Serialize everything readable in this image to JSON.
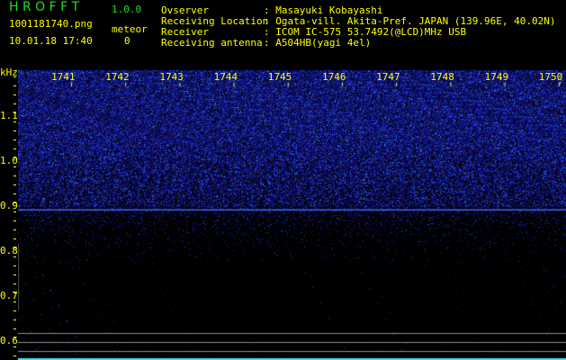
{
  "app": {
    "logo_letters": "H R O F F T",
    "version": "1.0.0"
  },
  "file": {
    "name": "1001181740.png",
    "datetime": "10.01.18 17:40"
  },
  "meteor": {
    "label": "meteor",
    "count": "0"
  },
  "info": [
    {
      "label": "Ovserver",
      "value": ": Masayuki Kobayashi"
    },
    {
      "label": "Receiving Location",
      "value": ": Ogata-vill. Akita-Pref. JAPAN (139.96E, 40.02N)"
    },
    {
      "label": "Receiver",
      "value": ": ICOM IC-575 53.7492(@LCD)MHz USB"
    },
    {
      "label": "Receiving antenna",
      "value": ": A504HB(yagi 4el)"
    }
  ],
  "spectrogram": {
    "y_unit": "kHz",
    "x_ticks": [
      "1741",
      "1742",
      "1743",
      "1744",
      "1745",
      "1746",
      "1747",
      "1748",
      "1749",
      "1750"
    ],
    "y_ticks": [
      "1.1",
      "1.0",
      "0.9",
      "0.8",
      "0.7",
      "0.6"
    ],
    "carrier_freq_khz": 0.895,
    "colors": {
      "noise": "#2030ff",
      "carrier": "#4060ff",
      "ticks": "#ffff00",
      "markers": "#909090",
      "bottom_trace": "#40e0ff"
    }
  }
}
